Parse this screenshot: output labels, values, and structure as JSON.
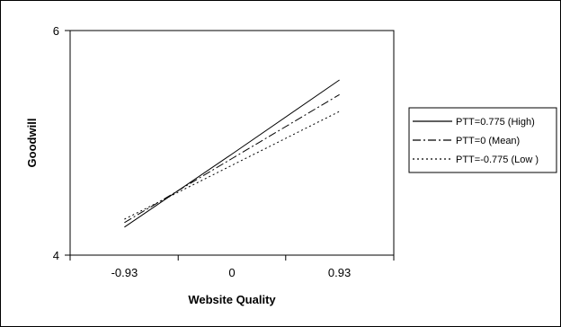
{
  "chart_data": {
    "type": "line",
    "title": "",
    "xlabel": "Website Quality",
    "ylabel": "Goodwill",
    "x": [
      -0.93,
      0,
      0.93
    ],
    "x_ticks": [
      "-0.93",
      "0",
      "0.93"
    ],
    "y_ticks": [
      "4",
      "6"
    ],
    "xlim": [
      -1.4,
      1.4
    ],
    "ylim": [
      4,
      6
    ],
    "grid": false,
    "legend_position": "right",
    "series": [
      {
        "name": "PTT=0.775 (High)",
        "values": [
          4.25,
          4.9,
          5.56
        ],
        "style": "solid"
      },
      {
        "name": "PTT=0 (Mean)",
        "values": [
          4.29,
          4.86,
          5.43
        ],
        "style": "dashdot"
      },
      {
        "name": "PTT=-0.775 (Low )",
        "values": [
          4.32,
          4.8,
          5.28
        ],
        "style": "dotted"
      }
    ],
    "colors": {
      "line": "#000000",
      "background": "#ffffff"
    }
  }
}
